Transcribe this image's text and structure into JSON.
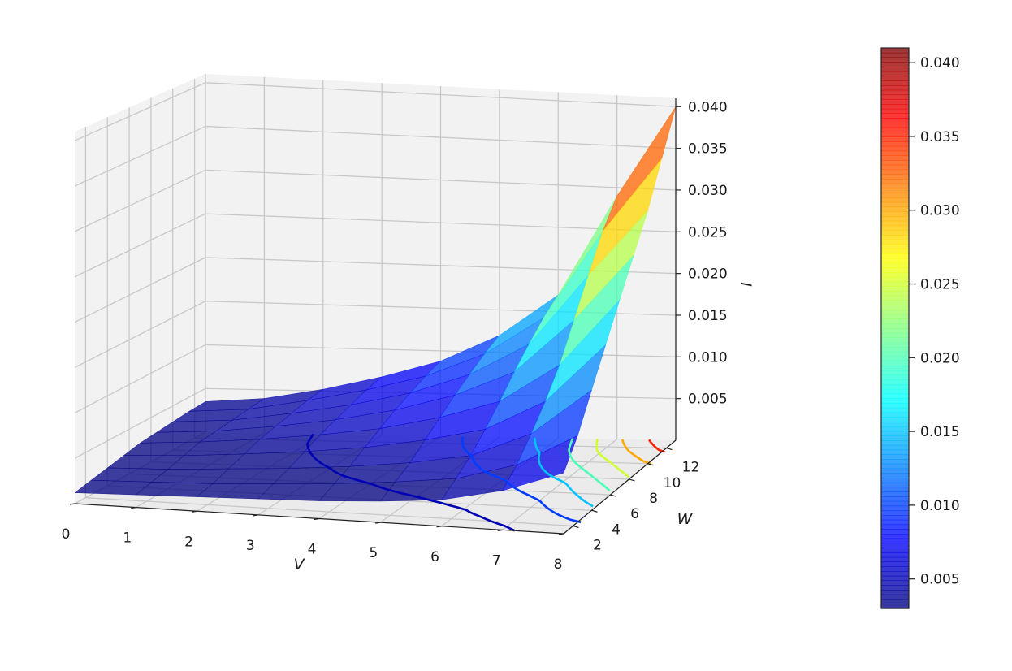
{
  "chart_data": {
    "type": "surface3d",
    "title": "",
    "xlabel": "V",
    "ylabel": "W",
    "zlabel": "I",
    "x_ticks": [
      "0",
      "1",
      "2",
      "3",
      "4",
      "5",
      "6",
      "7",
      "8"
    ],
    "y_ticks": [
      "2",
      "4",
      "6",
      "8",
      "10",
      "12"
    ],
    "z_ticks": [
      "0.005",
      "0.010",
      "0.015",
      "0.020",
      "0.025",
      "0.030",
      "0.035",
      "0.040"
    ],
    "colorbar_ticks": [
      "0.005",
      "0.010",
      "0.015",
      "0.020",
      "0.025",
      "0.030",
      "0.035",
      "0.040"
    ],
    "colormap": "jet",
    "zlim": [
      0.0,
      0.041
    ],
    "x": [
      0,
      1,
      2,
      3,
      4,
      5,
      6,
      7,
      8
    ],
    "y": [
      1,
      2.5,
      4,
      5.5,
      7,
      8.5,
      10,
      11.5,
      13
    ],
    "z": [
      [
        0.0012,
        0.0016,
        0.002,
        0.0024,
        0.0028,
        0.003,
        0.0032,
        0.0034,
        0.0035
      ],
      [
        0.0014,
        0.0018,
        0.0022,
        0.0027,
        0.0032,
        0.0034,
        0.0036,
        0.0038,
        0.004
      ],
      [
        0.0016,
        0.002,
        0.0026,
        0.0032,
        0.0038,
        0.0042,
        0.0046,
        0.005,
        0.0052
      ],
      [
        0.0018,
        0.0024,
        0.003,
        0.0038,
        0.0046,
        0.0052,
        0.0058,
        0.0064,
        0.0068
      ],
      [
        0.002,
        0.0028,
        0.0036,
        0.0046,
        0.0056,
        0.0066,
        0.0074,
        0.0082,
        0.0088
      ],
      [
        0.0024,
        0.0034,
        0.0044,
        0.0058,
        0.0072,
        0.0086,
        0.0098,
        0.011,
        0.012
      ],
      [
        0.003,
        0.0042,
        0.0056,
        0.0074,
        0.0094,
        0.0116,
        0.0136,
        0.0155,
        0.017
      ],
      [
        0.0045,
        0.0062,
        0.0085,
        0.011,
        0.014,
        0.018,
        0.022,
        0.026,
        0.029
      ],
      [
        0.007,
        0.01,
        0.014,
        0.018,
        0.022,
        0.026,
        0.03,
        0.035,
        0.04
      ]
    ]
  }
}
